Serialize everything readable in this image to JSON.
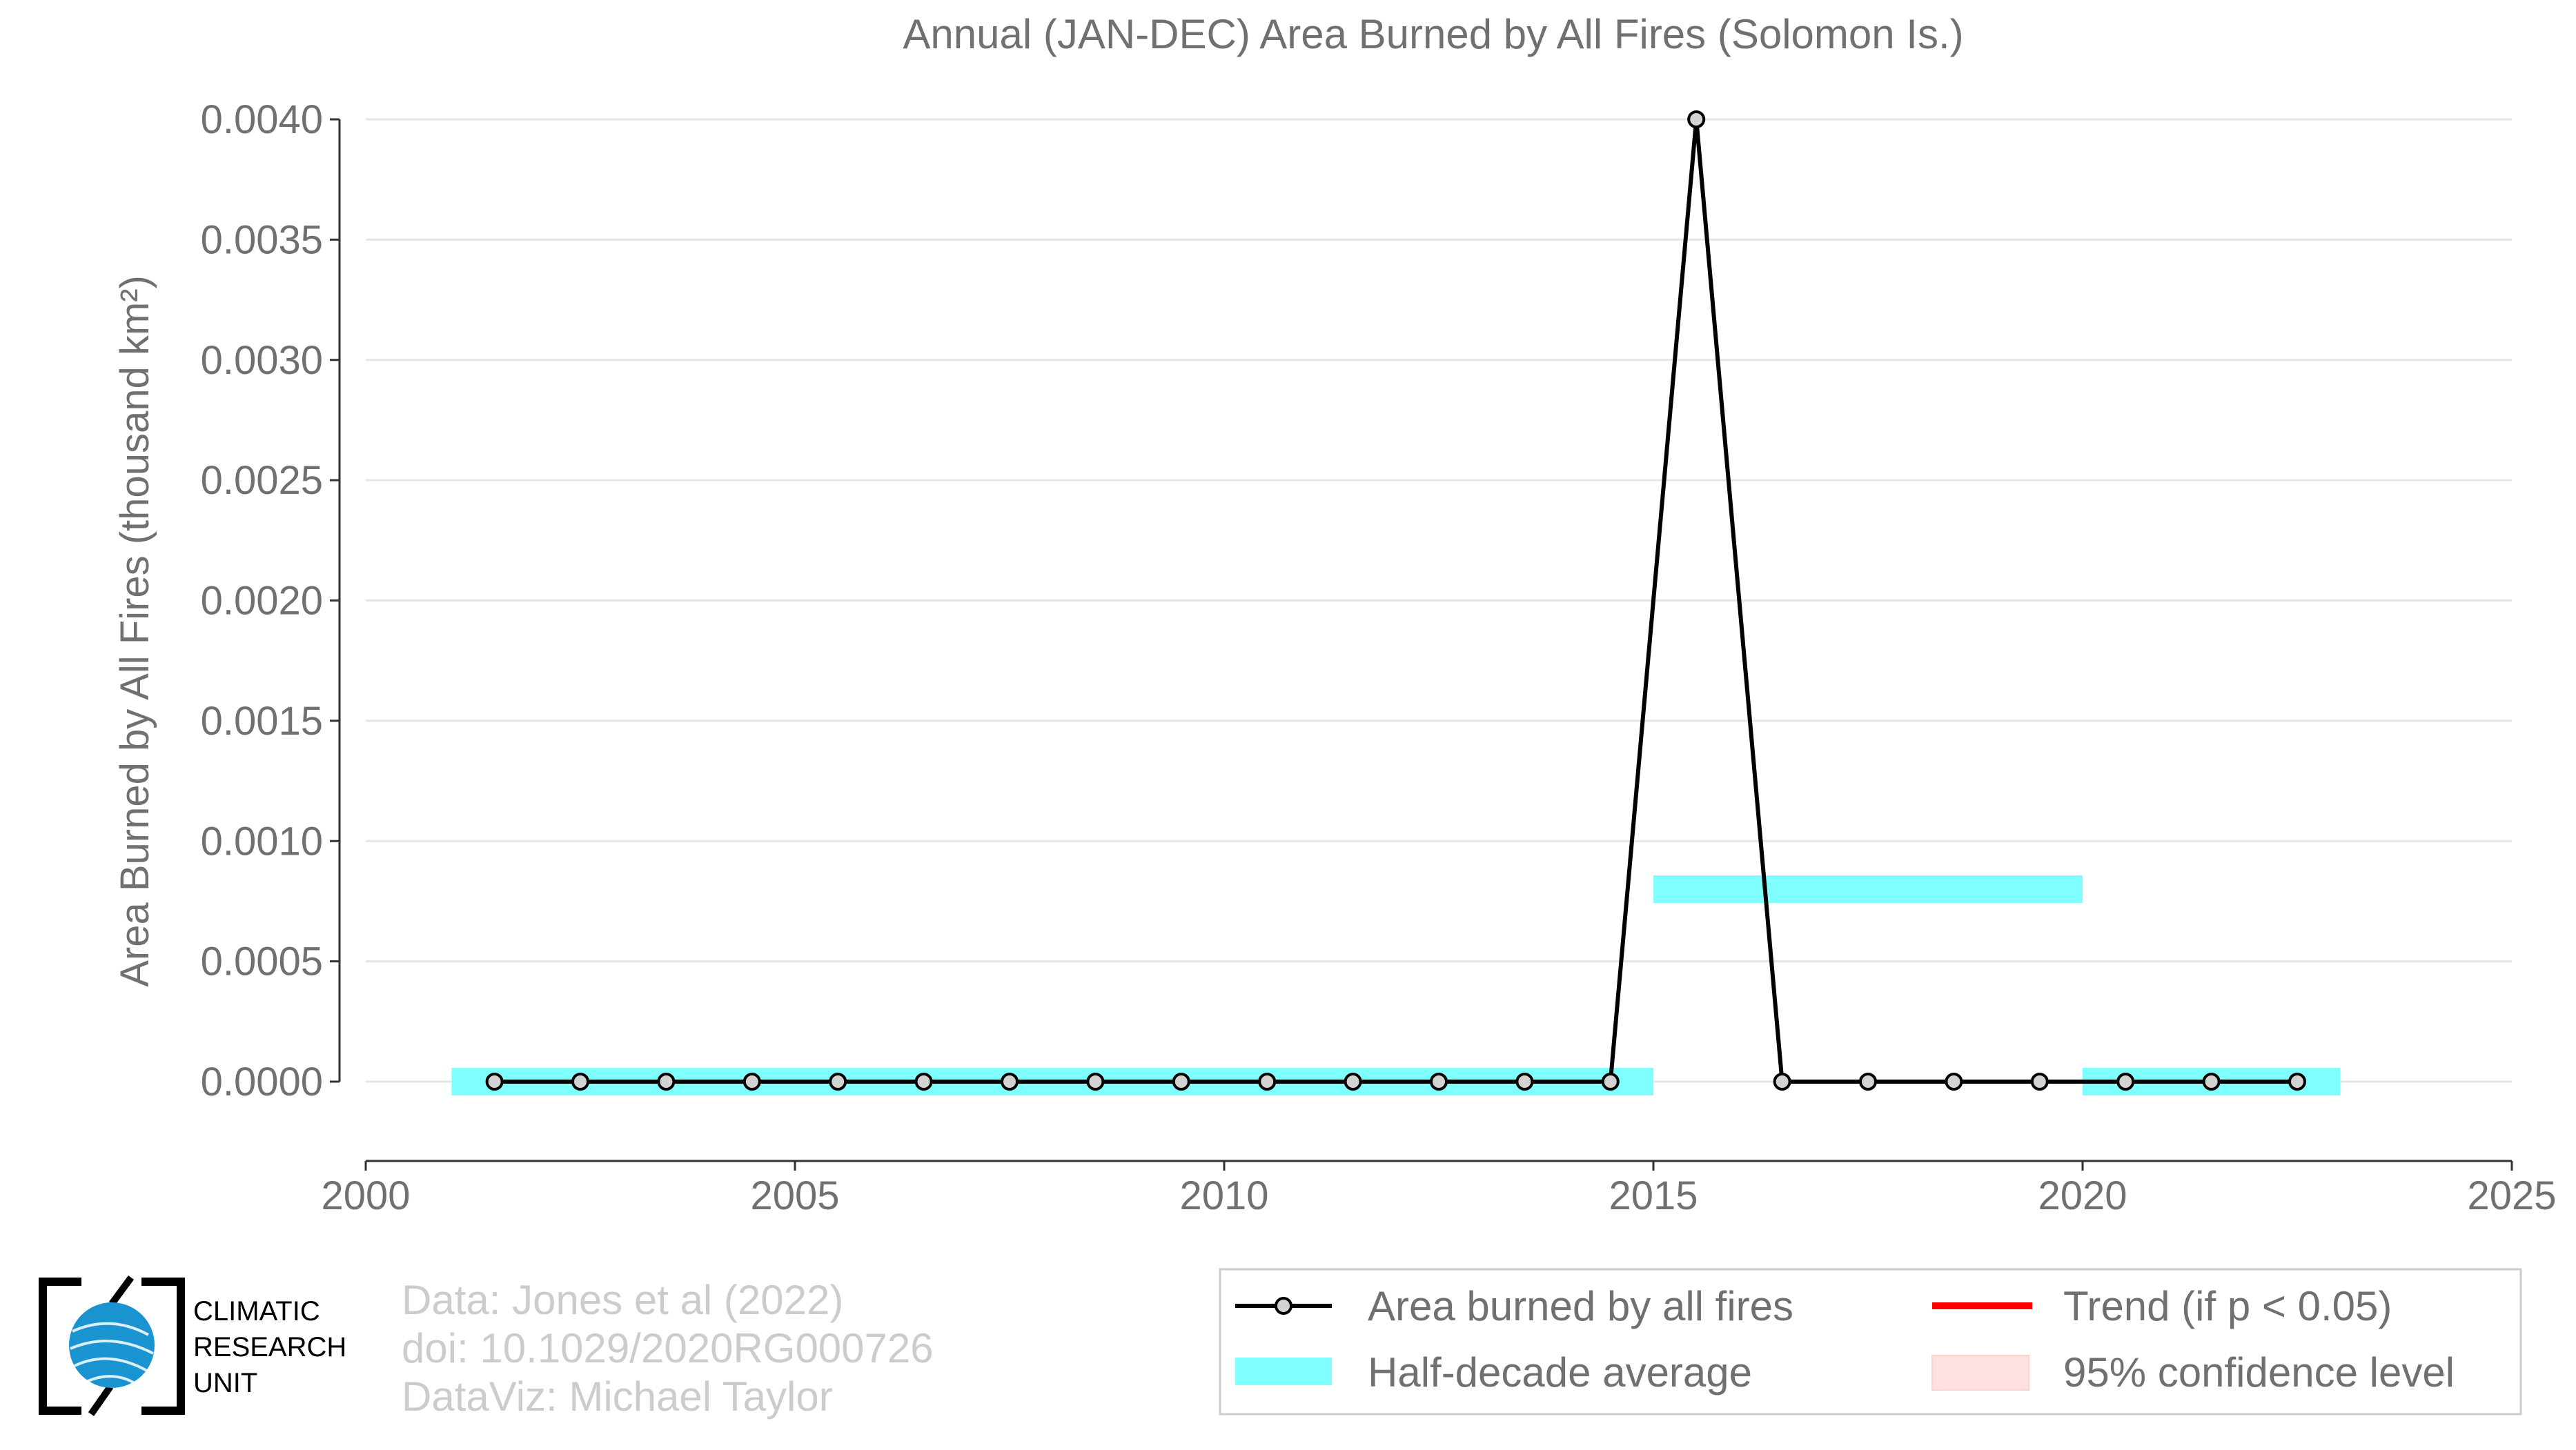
{
  "chart_data": {
    "type": "line",
    "title": "Annual (JAN-DEC) Area Burned by All Fires (Solomon Is.)",
    "ylabel": "Area Burned by All Fires (thousand km²)",
    "xlim": [
      2000,
      2025
    ],
    "ylim": [
      -0.00032,
      0.004
    ],
    "x_ticks": [
      "2000",
      "2005",
      "2010",
      "2015",
      "2020",
      "2025"
    ],
    "y_ticks": [
      "0.0000",
      "0.0005",
      "0.0010",
      "0.0015",
      "0.0020",
      "0.0025",
      "0.0030",
      "0.0035",
      "0.0040"
    ],
    "grid": "horizontal",
    "series": [
      {
        "name": "Area burned by all fires",
        "color": "#000000",
        "marker_fill": "#d3d3d3",
        "x": [
          2001.5,
          2002.5,
          2003.5,
          2004.5,
          2005.5,
          2006.5,
          2007.5,
          2008.5,
          2009.5,
          2010.5,
          2011.5,
          2012.5,
          2013.5,
          2014.5,
          2015.5,
          2016.5,
          2017.5,
          2018.5,
          2019.5,
          2020.5,
          2021.5,
          2022.5
        ],
        "values": [
          0,
          0,
          0,
          0,
          0,
          0,
          0,
          0,
          0,
          0,
          0,
          0,
          0,
          0,
          0.004,
          0,
          0,
          0,
          0,
          0,
          0,
          0
        ]
      }
    ],
    "half_decade_average": {
      "name": "Half-decade average",
      "color": "#80ffff",
      "segments": [
        {
          "x0": 2001,
          "x1": 2015,
          "value": 0
        },
        {
          "x0": 2015,
          "x1": 2020,
          "value": 0.0008
        },
        {
          "x0": 2020,
          "x1": 2023,
          "value": 0
        }
      ]
    },
    "legend": {
      "position": "bottom-right",
      "entries": [
        {
          "label": "Area burned by all fires",
          "kind": "line-marker",
          "color": "#000000"
        },
        {
          "label": "Trend (if p < 0.05)",
          "kind": "line",
          "color": "#ff0000"
        },
        {
          "label": "Half-decade average",
          "kind": "band",
          "color": "#80ffff"
        },
        {
          "label": "95% confidence level",
          "kind": "band",
          "color": "#ffe0e0"
        }
      ]
    }
  },
  "credits": {
    "logo_lines": [
      "CLIMATIC",
      "RESEARCH",
      "UNIT"
    ],
    "line1": "Data: Jones et al (2022)",
    "line2": "doi: 10.1029/2020RG000726",
    "line3": "DataViz: Michael Taylor"
  }
}
